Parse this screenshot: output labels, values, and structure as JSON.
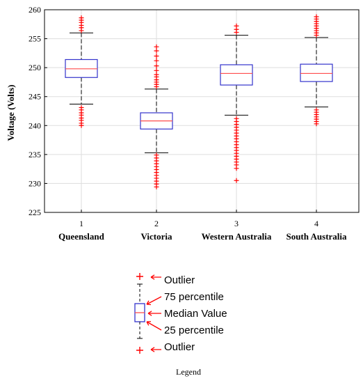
{
  "chart_data": {
    "type": "box",
    "ylabel": "Voltage (Volts)",
    "ylim": [
      225,
      260
    ],
    "yticks": [
      225,
      230,
      235,
      240,
      245,
      250,
      255,
      260
    ],
    "grid": true,
    "categories": [
      {
        "tick": "1",
        "name": "Queensland"
      },
      {
        "tick": "2",
        "name": "Victoria"
      },
      {
        "tick": "3",
        "name": "Western Australia"
      },
      {
        "tick": "4",
        "name": "South Australia"
      }
    ],
    "boxes": [
      {
        "q1": 248.3,
        "median": 249.8,
        "q3": 251.4,
        "whisker_low": 243.7,
        "whisker_high": 256.0,
        "outliers_high": [
          256.4,
          256.9,
          257.3,
          257.8,
          258.2,
          258.6
        ],
        "outliers_low": [
          240.0,
          240.4,
          240.9,
          241.3,
          241.8,
          242.2,
          242.7,
          243.1
        ]
      },
      {
        "q1": 239.4,
        "median": 240.8,
        "q3": 242.2,
        "whisker_low": 235.3,
        "whisker_high": 246.3,
        "outliers_high": [
          246.7,
          247.1,
          247.5,
          247.9,
          248.4,
          248.8,
          249.5,
          250.3,
          251.2,
          252.0,
          252.9,
          253.6
        ],
        "outliers_low": [
          229.4,
          229.9,
          230.4,
          230.9,
          231.4,
          231.9,
          232.4,
          232.9,
          233.4,
          233.9,
          234.4,
          234.9
        ]
      },
      {
        "q1": 247.0,
        "median": 249.0,
        "q3": 250.5,
        "whisker_low": 241.8,
        "whisker_high": 255.6,
        "outliers_high": [
          256.1,
          256.6,
          257.2
        ],
        "outliers_low": [
          230.5,
          232.6,
          233.2,
          233.7,
          234.2,
          234.7,
          235.2,
          235.7,
          236.2,
          236.7,
          237.2,
          237.7,
          238.2,
          238.7,
          239.2,
          239.7,
          240.2,
          240.7,
          241.2
        ]
      },
      {
        "q1": 247.6,
        "median": 249.0,
        "q3": 250.6,
        "whisker_low": 243.2,
        "whisker_high": 255.2,
        "outliers_high": [
          255.6,
          256.0,
          256.4,
          256.8,
          257.2,
          257.6,
          258.0,
          258.4,
          258.8
        ],
        "outliers_low": [
          240.3,
          240.7,
          241.1,
          241.5,
          241.9,
          242.3,
          242.7
        ]
      }
    ],
    "colors": {
      "box": "#3333cc",
      "median": "#ff4d4d",
      "outlier": "#ff0000",
      "whisker": "#000000",
      "grid": "#dddddd"
    }
  },
  "legend": {
    "outlier_top": "Outlier",
    "percentile_75": "75 percentile",
    "median": "Median Value",
    "percentile_25": "25 percentile",
    "outlier_bottom": "Outlier",
    "caption": "Legend",
    "arrow_color": "#ff0000"
  }
}
